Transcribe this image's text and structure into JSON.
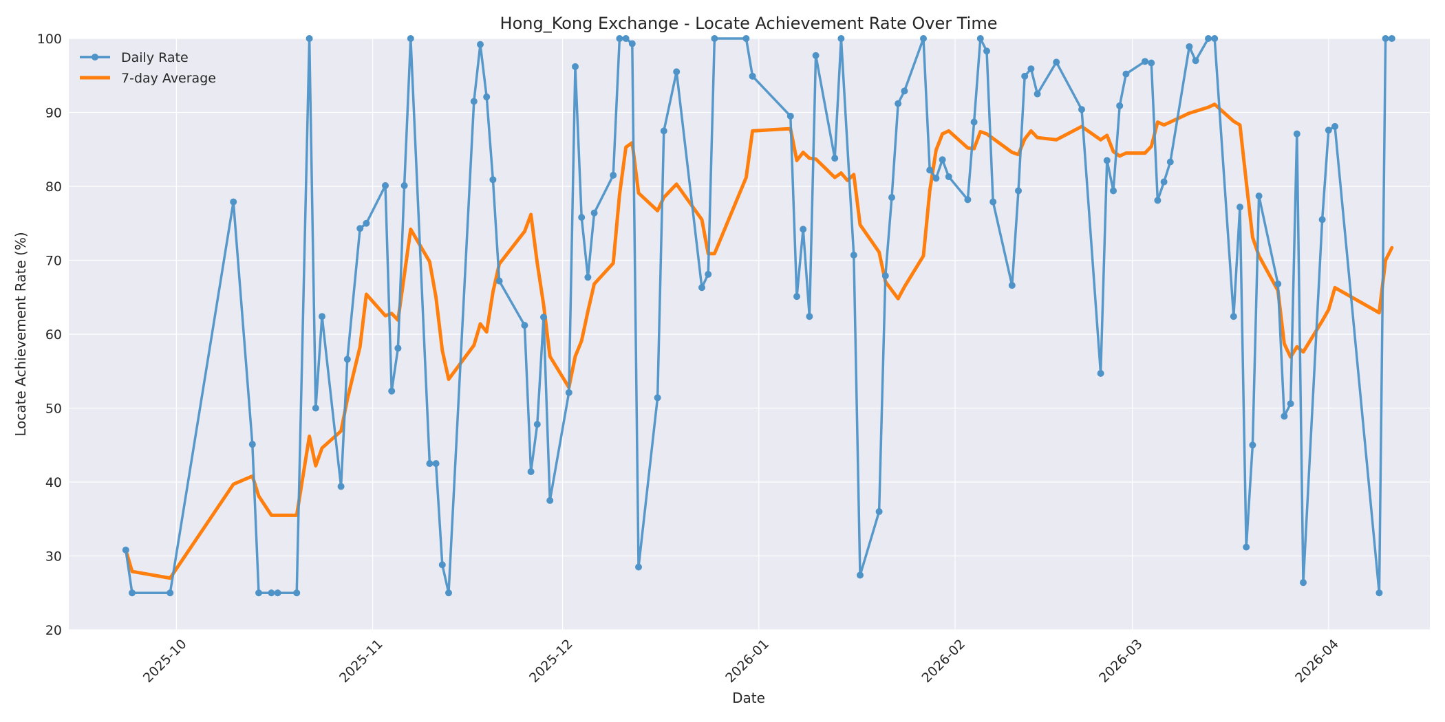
{
  "chart_data": {
    "type": "line",
    "title": "Hong_Kong Exchange - Locate Achievement Rate Over Time",
    "xlabel": "Date",
    "ylabel": "Locate Achievement Rate (%)",
    "xlim": [
      "2025-09-14",
      "2026-04-17"
    ],
    "ylim": [
      20,
      100
    ],
    "yticks": [
      20,
      30,
      40,
      50,
      60,
      70,
      80,
      90,
      100
    ],
    "xticks": [
      "2025-10-01",
      "2025-11-01",
      "2025-12-01",
      "2026-01-01",
      "2026-02-01",
      "2026-03-01",
      "2026-04-01"
    ],
    "xtick_labels": [
      "2025-10",
      "2025-11",
      "2025-12",
      "2026-01",
      "2026-02",
      "2026-03",
      "2026-04"
    ],
    "grid": true,
    "legend_position": "top-left",
    "series": [
      {
        "name": "Daily Rate",
        "color": "#4e93c7",
        "marker": "circle",
        "points": [
          [
            "2025-09-23",
            30.8
          ],
          [
            "2025-09-24",
            25.0
          ],
          [
            "2025-09-30",
            25.0
          ],
          [
            "2025-10-10",
            77.9
          ],
          [
            "2025-10-13",
            45.1
          ],
          [
            "2025-10-14",
            25.0
          ],
          [
            "2025-10-16",
            25.0
          ],
          [
            "2025-10-17",
            25.0
          ],
          [
            "2025-10-20",
            25.0
          ],
          [
            "2025-10-22",
            100.0
          ],
          [
            "2025-10-23",
            50.0
          ],
          [
            "2025-10-24",
            62.4
          ],
          [
            "2025-10-27",
            39.4
          ],
          [
            "2025-10-28",
            56.6
          ],
          [
            "2025-10-30",
            74.3
          ],
          [
            "2025-10-31",
            75.0
          ],
          [
            "2025-11-03",
            80.1
          ],
          [
            "2025-11-04",
            52.3
          ],
          [
            "2025-11-05",
            58.1
          ],
          [
            "2025-11-06",
            80.1
          ],
          [
            "2025-11-07",
            100.0
          ],
          [
            "2025-11-10",
            42.5
          ],
          [
            "2025-11-11",
            42.5
          ],
          [
            "2025-11-12",
            28.8
          ],
          [
            "2025-11-13",
            25.0
          ],
          [
            "2025-11-17",
            91.5
          ],
          [
            "2025-11-18",
            99.2
          ],
          [
            "2025-11-19",
            92.1
          ],
          [
            "2025-11-20",
            80.9
          ],
          [
            "2025-11-21",
            67.2
          ],
          [
            "2025-11-25",
            61.2
          ],
          [
            "2025-11-26",
            41.4
          ],
          [
            "2025-11-27",
            47.8
          ],
          [
            "2025-11-28",
            62.3
          ],
          [
            "2025-11-29",
            37.5
          ],
          [
            "2025-12-02",
            52.1
          ],
          [
            "2025-12-03",
            96.2
          ],
          [
            "2025-12-04",
            75.8
          ],
          [
            "2025-12-05",
            67.7
          ],
          [
            "2025-12-06",
            76.4
          ],
          [
            "2025-12-09",
            81.5
          ],
          [
            "2025-12-10",
            100.0
          ],
          [
            "2025-12-11",
            100.0
          ],
          [
            "2025-12-12",
            99.3
          ],
          [
            "2025-12-13",
            28.5
          ],
          [
            "2025-12-16",
            51.4
          ],
          [
            "2025-12-17",
            87.5
          ],
          [
            "2025-12-19",
            95.5
          ],
          [
            "2025-12-23",
            66.3
          ],
          [
            "2025-12-24",
            68.1
          ],
          [
            "2025-12-25",
            100.0
          ],
          [
            "2025-12-30",
            100.0
          ],
          [
            "2025-12-31",
            94.9
          ],
          [
            "2026-01-06",
            89.5
          ],
          [
            "2026-01-07",
            65.1
          ],
          [
            "2026-01-08",
            74.2
          ],
          [
            "2026-01-09",
            62.4
          ],
          [
            "2026-01-10",
            97.7
          ],
          [
            "2026-01-13",
            83.8
          ],
          [
            "2026-01-14",
            100.0
          ],
          [
            "2026-01-16",
            70.7
          ],
          [
            "2026-01-17",
            27.4
          ],
          [
            "2026-01-20",
            36.0
          ],
          [
            "2026-01-21",
            67.9
          ],
          [
            "2026-01-22",
            78.5
          ],
          [
            "2026-01-23",
            91.2
          ],
          [
            "2026-01-24",
            92.9
          ],
          [
            "2026-01-27",
            100.0
          ],
          [
            "2026-01-28",
            82.2
          ],
          [
            "2026-01-29",
            81.1
          ],
          [
            "2026-01-30",
            83.6
          ],
          [
            "2026-01-31",
            81.3
          ],
          [
            "2026-02-03",
            78.2
          ],
          [
            "2026-02-04",
            88.7
          ],
          [
            "2026-02-05",
            100.0
          ],
          [
            "2026-02-06",
            98.3
          ],
          [
            "2026-02-07",
            77.9
          ],
          [
            "2026-02-10",
            66.6
          ],
          [
            "2026-02-11",
            79.4
          ],
          [
            "2026-02-12",
            94.9
          ],
          [
            "2026-02-13",
            95.9
          ],
          [
            "2026-02-14",
            92.5
          ],
          [
            "2026-02-17",
            96.8
          ],
          [
            "2026-02-21",
            90.4
          ],
          [
            "2026-02-24",
            54.7
          ],
          [
            "2026-02-25",
            83.5
          ],
          [
            "2026-02-26",
            79.4
          ],
          [
            "2026-02-27",
            90.9
          ],
          [
            "2026-02-28",
            95.2
          ],
          [
            "2026-03-03",
            96.9
          ],
          [
            "2026-03-04",
            96.7
          ],
          [
            "2026-03-05",
            78.1
          ],
          [
            "2026-03-06",
            80.6
          ],
          [
            "2026-03-07",
            83.3
          ],
          [
            "2026-03-10",
            98.9
          ],
          [
            "2026-03-11",
            97.0
          ],
          [
            "2026-03-13",
            100.0
          ],
          [
            "2026-03-14",
            100.0
          ],
          [
            "2026-03-17",
            62.4
          ],
          [
            "2026-03-18",
            77.2
          ],
          [
            "2026-03-19",
            31.2
          ],
          [
            "2026-03-20",
            45.0
          ],
          [
            "2026-03-21",
            78.7
          ],
          [
            "2026-03-24",
            66.8
          ],
          [
            "2026-03-25",
            48.9
          ],
          [
            "2026-03-26",
            50.6
          ],
          [
            "2026-03-27",
            87.1
          ],
          [
            "2026-03-28",
            26.4
          ],
          [
            "2026-03-31",
            75.5
          ],
          [
            "2026-04-01",
            87.6
          ],
          [
            "2026-04-02",
            88.1
          ],
          [
            "2026-04-09",
            25.0
          ],
          [
            "2026-04-10",
            100.0
          ],
          [
            "2026-04-11",
            100.0
          ]
        ]
      },
      {
        "name": "7-day Average",
        "color": "#ff7f0e",
        "marker": "none",
        "points": [
          [
            "2025-09-23",
            30.8
          ],
          [
            "2025-09-24",
            27.9
          ],
          [
            "2025-09-30",
            27.0
          ],
          [
            "2025-10-10",
            39.7
          ],
          [
            "2025-10-13",
            40.8
          ],
          [
            "2025-10-14",
            38.1
          ],
          [
            "2025-10-16",
            35.5
          ],
          [
            "2025-10-17",
            35.5
          ],
          [
            "2025-10-20",
            35.5
          ],
          [
            "2025-10-22",
            46.2
          ],
          [
            "2025-10-23",
            42.2
          ],
          [
            "2025-10-24",
            44.6
          ],
          [
            "2025-10-27",
            46.9
          ],
          [
            "2025-10-28",
            51.2
          ],
          [
            "2025-10-30",
            58.3
          ],
          [
            "2025-10-31",
            65.4
          ],
          [
            "2025-11-03",
            62.5
          ],
          [
            "2025-11-04",
            62.8
          ],
          [
            "2025-11-05",
            61.9
          ],
          [
            "2025-11-06",
            68.0
          ],
          [
            "2025-11-07",
            74.2
          ],
          [
            "2025-11-10",
            69.8
          ],
          [
            "2025-11-11",
            65.0
          ],
          [
            "2025-11-12",
            57.8
          ],
          [
            "2025-11-13",
            53.9
          ],
          [
            "2025-11-17",
            58.5
          ],
          [
            "2025-11-18",
            61.4
          ],
          [
            "2025-11-19",
            60.3
          ],
          [
            "2025-11-20",
            65.7
          ],
          [
            "2025-11-21",
            69.5
          ],
          [
            "2025-11-25",
            73.9
          ],
          [
            "2025-11-26",
            76.2
          ],
          [
            "2025-11-27",
            69.6
          ],
          [
            "2025-11-28",
            64.0
          ],
          [
            "2025-11-29",
            57.0
          ],
          [
            "2025-12-02",
            52.8
          ],
          [
            "2025-12-03",
            57.0
          ],
          [
            "2025-12-04",
            59.1
          ],
          [
            "2025-12-05",
            63.1
          ],
          [
            "2025-12-06",
            66.8
          ],
          [
            "2025-12-09",
            69.6
          ],
          [
            "2025-12-10",
            78.9
          ],
          [
            "2025-12-11",
            85.3
          ],
          [
            "2025-12-12",
            85.9
          ],
          [
            "2025-12-13",
            79.1
          ],
          [
            "2025-12-16",
            76.7
          ],
          [
            "2025-12-17",
            78.5
          ],
          [
            "2025-12-19",
            80.3
          ],
          [
            "2025-12-23",
            75.5
          ],
          [
            "2025-12-24",
            70.9
          ],
          [
            "2025-12-25",
            70.9
          ],
          [
            "2025-12-30",
            81.2
          ],
          [
            "2025-12-31",
            87.5
          ],
          [
            "2026-01-06",
            87.8
          ],
          [
            "2026-01-07",
            83.5
          ],
          [
            "2026-01-08",
            84.6
          ],
          [
            "2026-01-09",
            83.8
          ],
          [
            "2026-01-10",
            83.7
          ],
          [
            "2026-01-13",
            81.2
          ],
          [
            "2026-01-14",
            81.8
          ],
          [
            "2026-01-15",
            80.8
          ],
          [
            "2026-01-16",
            81.6
          ],
          [
            "2026-01-17",
            74.8
          ],
          [
            "2026-01-20",
            71.1
          ],
          [
            "2026-01-21",
            67.1
          ],
          [
            "2026-01-23",
            64.8
          ],
          [
            "2026-01-24",
            66.4
          ],
          [
            "2026-01-27",
            70.6
          ],
          [
            "2026-01-28",
            79.4
          ],
          [
            "2026-01-29",
            84.9
          ],
          [
            "2026-01-30",
            87.1
          ],
          [
            "2026-01-31",
            87.5
          ],
          [
            "2026-02-03",
            85.2
          ],
          [
            "2026-02-04",
            85.1
          ],
          [
            "2026-02-05",
            87.4
          ],
          [
            "2026-02-06",
            87.1
          ],
          [
            "2026-02-10",
            84.6
          ],
          [
            "2026-02-11",
            84.3
          ],
          [
            "2026-02-12",
            86.4
          ],
          [
            "2026-02-13",
            87.5
          ],
          [
            "2026-02-14",
            86.6
          ],
          [
            "2026-02-17",
            86.3
          ],
          [
            "2026-02-21",
            88.1
          ],
          [
            "2026-02-24",
            86.3
          ],
          [
            "2026-02-25",
            86.9
          ],
          [
            "2026-02-26",
            84.7
          ],
          [
            "2026-02-27",
            84.1
          ],
          [
            "2026-02-28",
            84.5
          ],
          [
            "2026-03-03",
            84.5
          ],
          [
            "2026-03-04",
            85.4
          ],
          [
            "2026-03-05",
            88.7
          ],
          [
            "2026-03-06",
            88.3
          ],
          [
            "2026-03-07",
            88.7
          ],
          [
            "2026-03-10",
            89.9
          ],
          [
            "2026-03-13",
            90.7
          ],
          [
            "2026-03-14",
            91.1
          ],
          [
            "2026-03-17",
            88.8
          ],
          [
            "2026-03-18",
            88.3
          ],
          [
            "2026-03-19",
            80.6
          ],
          [
            "2026-03-20",
            73.1
          ],
          [
            "2026-03-21",
            70.6
          ],
          [
            "2026-03-24",
            65.9
          ],
          [
            "2026-03-25",
            58.7
          ],
          [
            "2026-03-26",
            56.9
          ],
          [
            "2026-03-27",
            58.3
          ],
          [
            "2026-03-28",
            57.6
          ],
          [
            "2026-03-31",
            61.8
          ],
          [
            "2026-04-01",
            63.3
          ],
          [
            "2026-04-02",
            66.3
          ],
          [
            "2026-04-09",
            62.9
          ],
          [
            "2026-04-10",
            70.0
          ],
          [
            "2026-04-11",
            71.7
          ]
        ]
      }
    ]
  }
}
